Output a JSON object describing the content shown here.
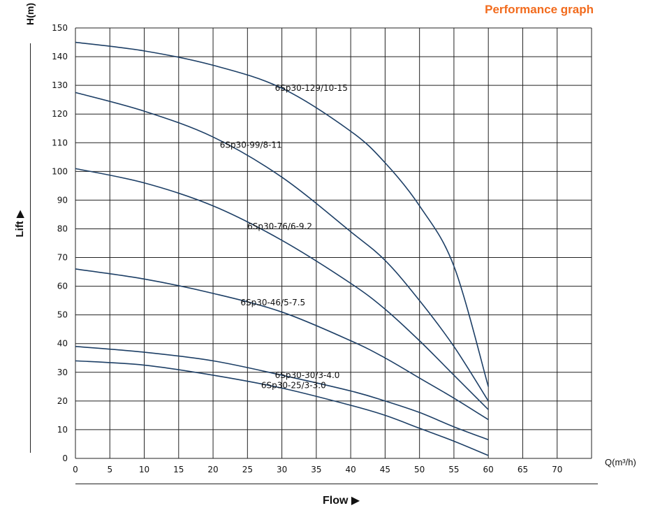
{
  "page": {
    "title": "Performance graph",
    "title_color": "#f26b1d",
    "curve_color": "#1d3f66",
    "grid_color": "#222222"
  },
  "chart_data": {
    "type": "line",
    "title": "Performance graph",
    "ylabel_unit": "H(m)",
    "ylabel": "Lift",
    "xlabel": "Flow",
    "xunit": "Q(m³/h)",
    "xlim": [
      0,
      75
    ],
    "ylim": [
      0,
      150
    ],
    "xticks": [
      0,
      5,
      10,
      15,
      20,
      25,
      30,
      35,
      40,
      45,
      50,
      55,
      60,
      65,
      70
    ],
    "yticks": [
      0,
      10,
      20,
      30,
      40,
      50,
      60,
      70,
      80,
      90,
      100,
      110,
      120,
      130,
      140,
      150
    ],
    "grid": true,
    "series": [
      {
        "name": "6Sp30-129/10-15",
        "x": [
          0,
          10,
          20,
          30,
          40,
          45,
          50,
          55,
          60
        ],
        "y": [
          145,
          142,
          137,
          129,
          114,
          103,
          88,
          67,
          25
        ]
      },
      {
        "name": "6Sp30-99/8-11",
        "x": [
          0,
          10,
          20,
          30,
          40,
          45,
          50,
          55,
          60
        ],
        "y": [
          127.5,
          121,
          112,
          98,
          79,
          69,
          55,
          39,
          20
        ]
      },
      {
        "name": "6Sp30-76/6-9.2",
        "x": [
          0,
          10,
          20,
          30,
          40,
          45,
          50,
          55,
          60
        ],
        "y": [
          101,
          96,
          88,
          76,
          61,
          52,
          41,
          29,
          17
        ]
      },
      {
        "name": "6Sp30-46/5-7.5",
        "x": [
          0,
          10,
          20,
          30,
          40,
          45,
          50,
          55,
          60
        ],
        "y": [
          66,
          62.5,
          57.5,
          51,
          41,
          35,
          28,
          21,
          13.5
        ]
      },
      {
        "name": "6Sp30-30/3-4.0",
        "x": [
          0,
          10,
          20,
          30,
          40,
          45,
          50,
          55,
          60
        ],
        "y": [
          39,
          37,
          34,
          29,
          23.5,
          20,
          16,
          11,
          6.5
        ]
      },
      {
        "name": "6Sp30-25/3-3.0",
        "x": [
          0,
          10,
          20,
          30,
          40,
          45,
          50,
          55,
          60
        ],
        "y": [
          34,
          32.5,
          29,
          24.5,
          18.5,
          15,
          10.5,
          6,
          1
        ]
      }
    ]
  }
}
